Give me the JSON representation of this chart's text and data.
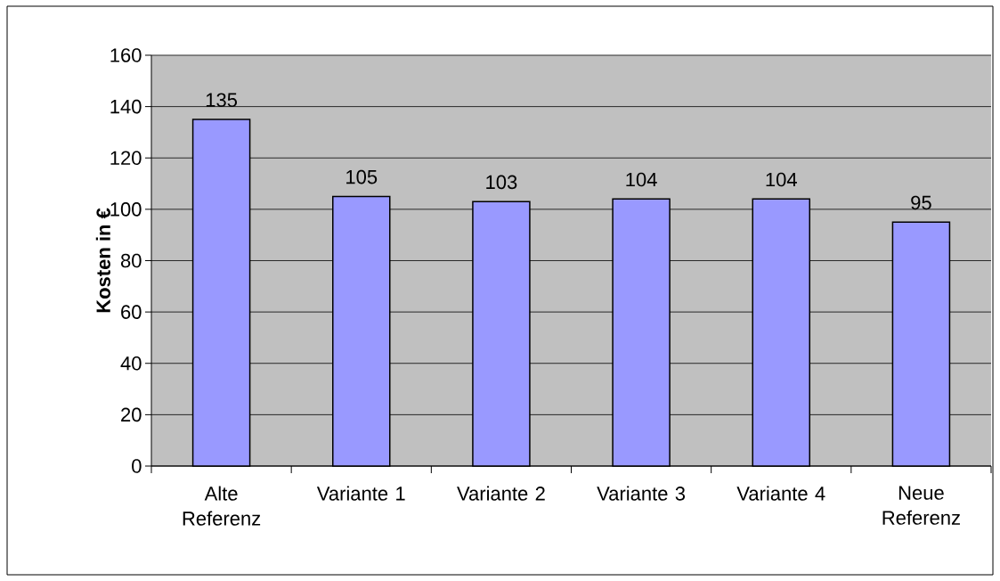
{
  "chart_data": {
    "type": "bar",
    "ylabel": "Kosten in €",
    "categories": [
      "Alte Referenz",
      "Variante 1",
      "Variante 2",
      "Variante 3",
      "Variante 4",
      "Neue Referenz"
    ],
    "values": [
      135,
      105,
      103,
      104,
      104,
      95
    ],
    "color": "#9999ff",
    "ylim": [
      0,
      160
    ],
    "yticks": [
      0,
      20,
      40,
      60,
      80,
      100,
      120,
      140,
      160
    ],
    "grid": "y",
    "data_labels": true
  }
}
